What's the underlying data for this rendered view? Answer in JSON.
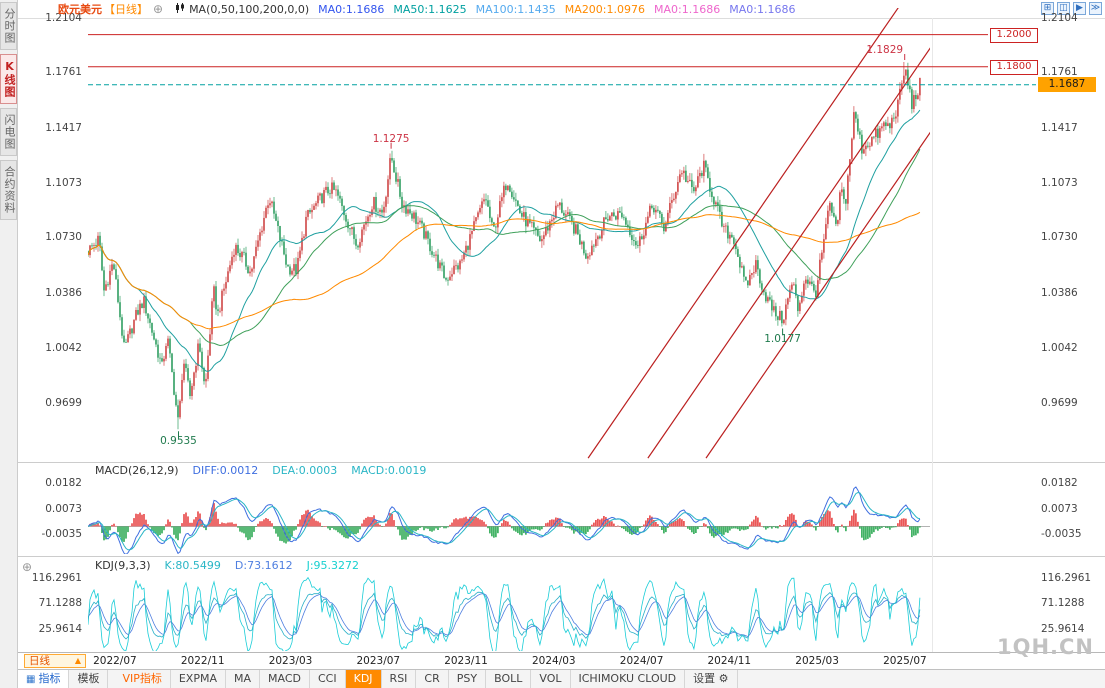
{
  "header": {
    "symbol": "欧元美元",
    "period_tag": "【日线】",
    "ma_settings": "MA(0,50,100,200,0,0)",
    "ma_values": [
      {
        "label": "MA0:1.1686",
        "color": "#3355ee"
      },
      {
        "label": "MA50:1.1625",
        "color": "#00a0a0"
      },
      {
        "label": "MA100:1.1435",
        "color": "#55aaee"
      },
      {
        "label": "MA200:1.0976",
        "color": "#ff8a00"
      },
      {
        "label": "MA0:1.1686",
        "color": "#ee66cc"
      },
      {
        "label": "MA0:1.1686",
        "color": "#7777ee"
      }
    ],
    "window_icons": [
      {
        "name": "layout-grid-icon",
        "glyph": "⊞"
      },
      {
        "name": "chart-panel-icon",
        "glyph": "◫"
      },
      {
        "name": "play-icon",
        "glyph": "▶"
      },
      {
        "name": "fast-forward-icon",
        "glyph": "≫"
      }
    ]
  },
  "sidebar": {
    "items": [
      {
        "label": "分时图",
        "name": "time-share-chart",
        "active": false
      },
      {
        "label": "K线图",
        "name": "kline-chart",
        "active": true
      },
      {
        "label": "闪电图",
        "name": "flash-chart",
        "active": false
      },
      {
        "label": "合约资料",
        "name": "contract-info",
        "active": false
      }
    ]
  },
  "price_panel": {
    "y_labels": [
      "1.2104",
      "1.1761",
      "1.1417",
      "1.1073",
      "1.0730",
      "1.0386",
      "1.0042",
      "0.9699"
    ],
    "levels": [
      {
        "price": 1.2,
        "label": "1.2000"
      },
      {
        "price": 1.18,
        "label": "1.1800"
      }
    ],
    "current_price": {
      "value": 1.1687,
      "label": "1.1687"
    }
  },
  "macd_panel": {
    "title": "MACD(26,12,9)",
    "diff_label": "DIFF:0.0012",
    "dea_label": "DEA:0.0003",
    "macd_label": "MACD:0.0019",
    "y_labels": [
      "0.0182",
      "0.0073",
      "-0.0035"
    ]
  },
  "kdj_panel": {
    "title": "KDJ(9,3,3)",
    "k_label": "K:80.5499",
    "d_label": "D:73.1612",
    "j_label": "J:95.3272",
    "y_labels": [
      "116.2961",
      "71.1288",
      "25.9614"
    ]
  },
  "x_axis": {
    "labels": [
      "2022/07",
      "2022/11",
      "2023/03",
      "2023/07",
      "2023/11",
      "2024/03",
      "2024/07",
      "2024/11",
      "2025/03",
      "2025/07"
    ]
  },
  "footer": {
    "period_selector": "日线",
    "tabs": [
      {
        "label": "指标",
        "name": "indicators",
        "icon_glyph": "▦",
        "active": true
      },
      {
        "label": "模板",
        "name": "templates",
        "icon_glyph": "",
        "active": false
      }
    ],
    "indicator_buttons": [
      {
        "label": "VIP指标",
        "name": "vip-indicators",
        "style": "vip"
      },
      {
        "label": "EXPMA",
        "name": "expma"
      },
      {
        "label": "MA",
        "name": "ma"
      },
      {
        "label": "MACD",
        "name": "macd"
      },
      {
        "label": "CCI",
        "name": "cci"
      },
      {
        "label": "KDJ",
        "name": "kdj",
        "active": true
      },
      {
        "label": "RSI",
        "name": "rsi"
      },
      {
        "label": "CR",
        "name": "cr"
      },
      {
        "label": "PSY",
        "name": "psy"
      },
      {
        "label": "BOLL",
        "name": "boll"
      },
      {
        "label": "VOL",
        "name": "vol"
      },
      {
        "label": "ICHIMOKU CLOUD",
        "name": "ichimoku-cloud"
      },
      {
        "label": "设置",
        "name": "settings",
        "icon_glyph": "⚙"
      }
    ]
  },
  "watermark": "1QH.CN",
  "chart_data": {
    "type": "candlestick",
    "title": "欧元美元 日线 (EUR/USD Daily)",
    "x_range": [
      "2022/06",
      "2025/07"
    ],
    "y_axis_prices": [
      1.2104,
      1.1761,
      1.1417,
      1.1073,
      1.073,
      1.0386,
      1.0042,
      0.9699
    ],
    "t_end": 0.988,
    "price_path": [
      [
        0.0,
        1.065
      ],
      [
        0.013,
        1.0722
      ],
      [
        0.019,
        1.04
      ],
      [
        0.03,
        1.058
      ],
      [
        0.043,
        1.003
      ],
      [
        0.058,
        1.026
      ],
      [
        0.066,
        1.034
      ],
      [
        0.088,
        0.992
      ],
      [
        0.094,
        1.012
      ],
      [
        0.1075,
        0.956
      ],
      [
        0.113,
        0.998
      ],
      [
        0.121,
        0.974
      ],
      [
        0.132,
        1.008
      ],
      [
        0.139,
        0.977
      ],
      [
        0.149,
        1.041
      ],
      [
        0.154,
        1.025
      ],
      [
        0.174,
        1.068
      ],
      [
        0.185,
        1.06
      ],
      [
        0.193,
        1.051
      ],
      [
        0.215,
        1.099
      ],
      [
        0.237,
        1.0545
      ],
      [
        0.248,
        1.053
      ],
      [
        0.259,
        1.085
      ],
      [
        0.278,
        1.099
      ],
      [
        0.288,
        1.104
      ],
      [
        0.295,
        1.101
      ],
      [
        0.319,
        1.069
      ],
      [
        0.338,
        1.0955
      ],
      [
        0.35,
        1.0885
      ],
      [
        0.36,
        1.124
      ],
      [
        0.373,
        1.0945
      ],
      [
        0.386,
        1.0875
      ],
      [
        0.397,
        1.078
      ],
      [
        0.425,
        1.047
      ],
      [
        0.433,
        1.053
      ],
      [
        0.442,
        1.0565
      ],
      [
        0.472,
        1.099
      ],
      [
        0.481,
        1.076
      ],
      [
        0.498,
        1.11
      ],
      [
        0.514,
        1.088
      ],
      [
        0.538,
        1.071
      ],
      [
        0.559,
        1.094
      ],
      [
        0.58,
        1.077
      ],
      [
        0.592,
        1.062
      ],
      [
        0.607,
        1.076
      ],
      [
        0.618,
        1.087
      ],
      [
        0.634,
        1.088
      ],
      [
        0.653,
        1.068
      ],
      [
        0.671,
        1.094
      ],
      [
        0.684,
        1.079
      ],
      [
        0.705,
        1.116
      ],
      [
        0.719,
        1.101
      ],
      [
        0.731,
        1.118
      ],
      [
        0.755,
        1.078
      ],
      [
        0.767,
        1.073
      ],
      [
        0.781,
        1.042
      ],
      [
        0.793,
        1.057
      ],
      [
        0.803,
        1.039
      ],
      [
        0.815,
        1.0265
      ],
      [
        0.825,
        1.022
      ],
      [
        0.837,
        1.046
      ],
      [
        0.843,
        1.028
      ],
      [
        0.852,
        1.049
      ],
      [
        0.864,
        1.038
      ],
      [
        0.881,
        1.094
      ],
      [
        0.889,
        1.076
      ],
      [
        0.894,
        1.105
      ],
      [
        0.899,
        1.092
      ],
      [
        0.91,
        1.151
      ],
      [
        0.919,
        1.129
      ],
      [
        0.94,
        1.139
      ],
      [
        0.946,
        1.144
      ],
      [
        0.952,
        1.142
      ],
      [
        0.963,
        1.158
      ],
      [
        0.97,
        1.179
      ],
      [
        0.979,
        1.156
      ],
      [
        0.988,
        1.1687
      ]
    ],
    "key_points": [
      {
        "label": "0.9535",
        "t": 0.1075,
        "price": 0.9535,
        "type": "low",
        "color": "#1f7a4d",
        "dx": 0
      },
      {
        "label": "1.1275",
        "t": 0.36,
        "price": 1.1275,
        "type": "high",
        "color": "#cc3344",
        "dx": 0
      },
      {
        "label": "1.0177",
        "t": 0.825,
        "price": 1.0177,
        "type": "low",
        "color": "#1f7a4d",
        "dx": 0
      },
      {
        "label": "1.1829",
        "t": 0.97,
        "price": 1.1829,
        "type": "high",
        "color": "#cc3344",
        "dx": -20
      }
    ],
    "levels": [
      1.2,
      1.18
    ],
    "last_price": 1.1687,
    "ma_lines": [
      {
        "name": "MA50",
        "value": 1.1625,
        "window": 26,
        "color": "#1fa0a0"
      },
      {
        "name": "MA100",
        "value": 1.1435,
        "window": 52,
        "color": "#3fa05a"
      },
      {
        "name": "MA200",
        "value": 1.0976,
        "window": 104,
        "color": "#ff8a00"
      }
    ],
    "trend_channel": [
      [
        0.594,
        0.9355,
        0.967,
        1.2204
      ],
      [
        0.665,
        0.9355,
        1.038,
        1.2204
      ],
      [
        0.734,
        0.9355,
        1.107,
        1.2204
      ]
    ],
    "macd": {
      "diff": 0.0012,
      "dea": 0.0003,
      "macd": 0.0019,
      "y_ticks": [
        0.0182,
        0.0073,
        -0.0035
      ]
    },
    "kdj": {
      "k": 80.5499,
      "d": 73.1612,
      "j": 95.3272,
      "y_ticks": [
        116.2961,
        71.1288,
        25.9614
      ]
    },
    "colors": {
      "up": "#cf4545",
      "down": "#2f9e60",
      "macd_up": "#e84545",
      "macd_down": "#2faa55"
    },
    "x_labels": [
      "2022/07",
      "2022/11",
      "2023/03",
      "2023/07",
      "2023/11",
      "2024/03",
      "2024/07",
      "2024/11",
      "2025/03",
      "2025/07"
    ]
  }
}
